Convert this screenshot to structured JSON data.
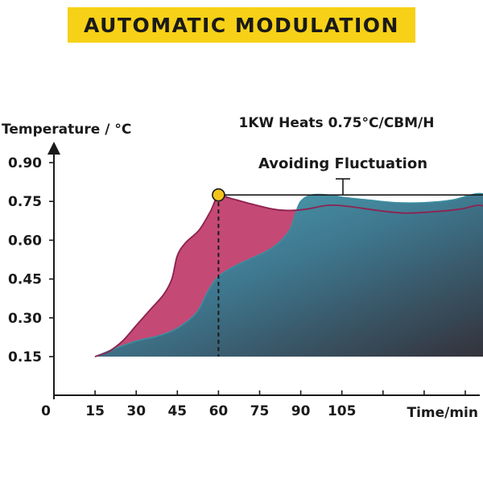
{
  "header": {
    "title": "AUTOMATIC MODULATION"
  },
  "chart_data": {
    "type": "area",
    "subtitle": "1KW Heats 0.75°C/CBM/H",
    "annotation": "Avoiding Fluctuation",
    "ylabel": "Temperature / °C",
    "xlabel": "Time/min",
    "x_origin_label": "0",
    "x_ticks": [
      15,
      30,
      45,
      60,
      75,
      90,
      105
    ],
    "y_ticks": [
      0.15,
      0.3,
      0.45,
      0.6,
      0.75,
      0.9
    ],
    "xlim": [
      0,
      170
    ],
    "ylim": [
      0.05,
      0.98
    ],
    "grid": false,
    "colors": {
      "pink": "#c23f6e",
      "teal": "#4aa8b8",
      "dark": "#2e2e35",
      "marker": "#f3c31c",
      "text": "#1a1a1a"
    },
    "series": [
      {
        "values": [
          [
            15,
            0.15
          ],
          [
            20,
            0.17
          ],
          [
            25,
            0.21
          ],
          [
            30,
            0.27
          ],
          [
            35,
            0.33
          ],
          [
            40,
            0.39
          ],
          [
            43,
            0.45
          ],
          [
            45,
            0.54
          ],
          [
            48,
            0.59
          ],
          [
            53,
            0.64
          ],
          [
            57,
            0.71
          ],
          [
            60,
            0.77
          ],
          [
            65,
            0.76
          ],
          [
            72,
            0.74
          ],
          [
            80,
            0.72
          ],
          [
            86,
            0.715
          ],
          [
            92,
            0.72
          ],
          [
            100,
            0.735
          ],
          [
            108,
            0.73
          ],
          [
            118,
            0.715
          ],
          [
            128,
            0.705
          ],
          [
            138,
            0.71
          ],
          [
            148,
            0.72
          ],
          [
            155,
            0.735
          ],
          [
            160,
            0.72
          ],
          [
            164,
            0.7
          ]
        ]
      },
      {
        "values": [
          [
            15,
            0.15
          ],
          [
            22,
            0.18
          ],
          [
            30,
            0.21
          ],
          [
            38,
            0.23
          ],
          [
            45,
            0.26
          ],
          [
            52,
            0.32
          ],
          [
            56,
            0.4
          ],
          [
            60,
            0.46
          ],
          [
            66,
            0.5
          ],
          [
            72,
            0.53
          ],
          [
            78,
            0.56
          ],
          [
            82,
            0.59
          ],
          [
            86,
            0.64
          ],
          [
            88,
            0.7
          ],
          [
            90,
            0.75
          ],
          [
            94,
            0.775
          ],
          [
            100,
            0.775
          ],
          [
            106,
            0.765
          ],
          [
            115,
            0.755
          ],
          [
            125,
            0.745
          ],
          [
            135,
            0.745
          ],
          [
            145,
            0.755
          ],
          [
            152,
            0.775
          ],
          [
            156,
            0.78
          ],
          [
            160,
            0.765
          ],
          [
            164,
            0.74
          ]
        ]
      }
    ],
    "markers": [
      [
        60,
        0.775
      ],
      [
        165,
        0.775
      ]
    ],
    "dashed_x": 60
  }
}
